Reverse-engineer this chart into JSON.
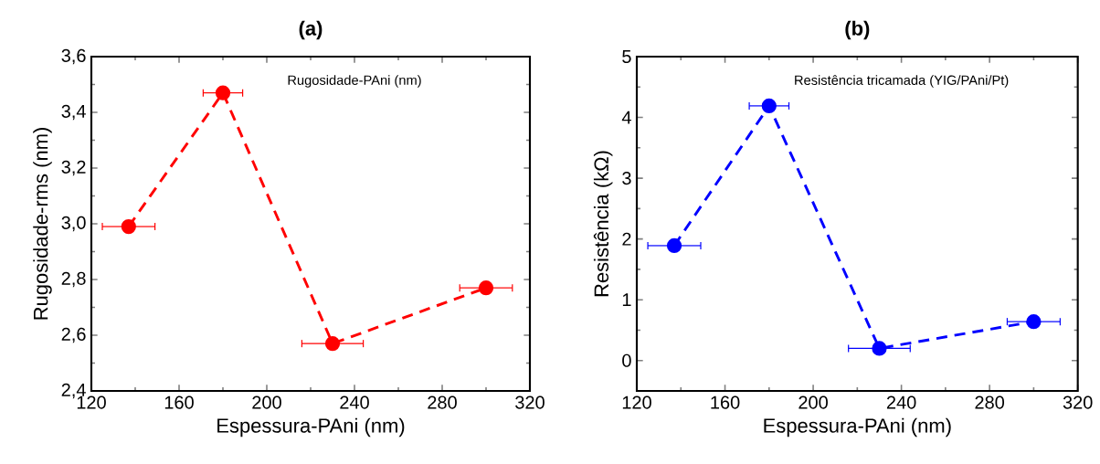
{
  "chart_data": [
    {
      "type": "line",
      "title": "(a)",
      "xlabel": "Espessura-PAni (nm)",
      "ylabel": "Rugosidade-rms (nm)",
      "annotations": [
        "Rugosidade-PAni (nm)"
      ],
      "marker": "circle",
      "line_style": "dashed",
      "xlim": [
        120,
        320
      ],
      "xticks": [
        120,
        160,
        200,
        240,
        280,
        320
      ],
      "ylim": [
        2.4,
        3.6
      ],
      "yticks": [
        {
          "value": 2.4,
          "label": "2,4"
        },
        {
          "value": 2.6,
          "label": "2,6"
        },
        {
          "value": 2.8,
          "label": "2,8"
        },
        {
          "value": 3.0,
          "label": "3,0"
        },
        {
          "value": 3.2,
          "label": "3,2"
        },
        {
          "value": 3.4,
          "label": "3,4"
        },
        {
          "value": 3.6,
          "label": "3,6"
        }
      ],
      "series": [
        {
          "color": "#ff0000",
          "x": [
            137,
            180,
            230,
            300
          ],
          "values": [
            2.99,
            3.47,
            2.57,
            2.77
          ],
          "xerrors": [
            12,
            9,
            14,
            12
          ]
        }
      ]
    },
    {
      "type": "line",
      "title": "(b)",
      "xlabel": "Espessura-PAni (nm)",
      "ylabel": "Resistência  (kΩ)",
      "annotations": [
        "Resistência tricamada (YIG/PAni/Pt)"
      ],
      "marker": "circle",
      "line_style": "dashed",
      "xlim": [
        120,
        320
      ],
      "xticks": [
        120,
        160,
        200,
        240,
        280,
        320
      ],
      "ylim": [
        -0.5,
        5
      ],
      "yticks": [
        0,
        1,
        2,
        3,
        4,
        5
      ],
      "series": [
        {
          "color": "#0000ff",
          "x": [
            137,
            180,
            230,
            300
          ],
          "values": [
            1.89,
            4.19,
            0.2,
            0.64
          ],
          "xerrors": [
            12,
            9,
            14,
            12
          ]
        }
      ]
    }
  ]
}
